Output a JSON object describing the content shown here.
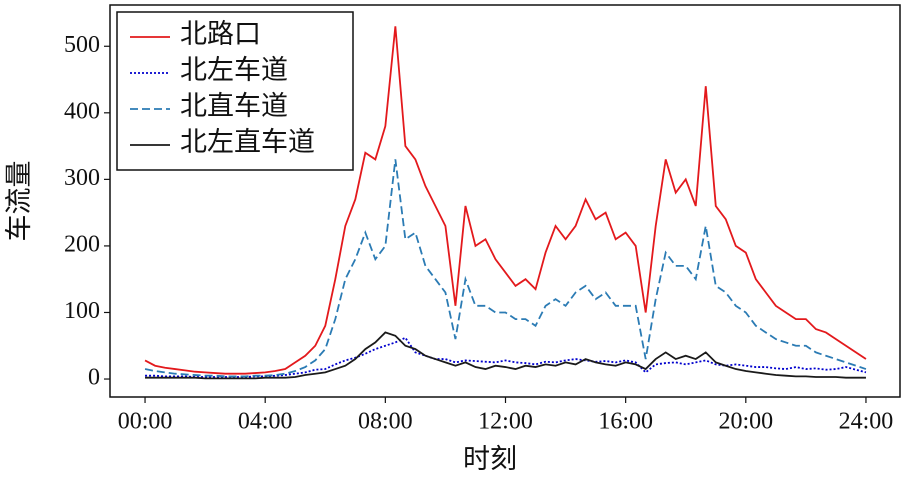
{
  "chart_data": {
    "type": "line",
    "xlabel": "时刻",
    "ylabel": "车流量",
    "x": [
      0,
      20,
      40,
      60,
      80,
      100,
      120,
      140,
      160,
      180,
      200,
      220,
      240,
      260,
      280,
      300,
      320,
      340,
      360,
      380,
      400,
      420,
      440,
      460,
      480,
      500,
      520,
      540,
      560,
      580,
      600,
      620,
      640,
      660,
      680,
      700,
      720,
      740,
      760,
      780,
      800,
      820,
      840,
      860,
      880,
      900,
      920,
      940,
      960,
      980,
      1000,
      1020,
      1040,
      1060,
      1080,
      1100,
      1120,
      1140,
      1160,
      1180,
      1200,
      1220,
      1240,
      1260,
      1280,
      1300,
      1320,
      1340,
      1360,
      1380,
      1400,
      1420,
      1440
    ],
    "xlim": [
      -70,
      1508
    ],
    "xticks": [
      {
        "value": 0,
        "label": "00:00"
      },
      {
        "value": 240,
        "label": "04:00"
      },
      {
        "value": 480,
        "label": "08:00"
      },
      {
        "value": 720,
        "label": "12:00"
      },
      {
        "value": 960,
        "label": "16:00"
      },
      {
        "value": 1200,
        "label": "20:00"
      },
      {
        "value": 1440,
        "label": "24:00"
      }
    ],
    "ylim": [
      -27,
      562
    ],
    "yticks": [
      0,
      100,
      200,
      300,
      400,
      500
    ],
    "legend": "upper left",
    "series": [
      {
        "name": "北路口",
        "color": "#e3191c",
        "linestyle": "solid",
        "values": [
          28,
          20,
          17,
          15,
          13,
          11,
          10,
          9,
          8,
          8,
          8,
          9,
          10,
          12,
          15,
          25,
          35,
          50,
          80,
          150,
          230,
          270,
          340,
          330,
          380,
          530,
          350,
          330,
          290,
          260,
          230,
          110,
          260,
          200,
          210,
          180,
          160,
          140,
          150,
          135,
          190,
          230,
          210,
          230,
          270,
          240,
          250,
          210,
          220,
          200,
          100,
          230,
          330,
          280,
          300,
          260,
          440,
          260,
          240,
          200,
          190,
          150,
          130,
          110,
          100,
          90,
          90,
          75,
          70,
          60,
          50,
          40,
          30
        ]
      },
      {
        "name": "北左车道",
        "color": "#0000cd",
        "linestyle": "dotted",
        "values": [
          5,
          5,
          4,
          4,
          4,
          3,
          3,
          3,
          3,
          3,
          3,
          4,
          4,
          5,
          6,
          8,
          10,
          14,
          15,
          22,
          28,
          32,
          38,
          45,
          50,
          55,
          62,
          40,
          35,
          30,
          30,
          25,
          28,
          27,
          26,
          25,
          28,
          25,
          24,
          22,
          26,
          25,
          28,
          30,
          28,
          26,
          27,
          25,
          28,
          25,
          10,
          22,
          24,
          25,
          22,
          25,
          28,
          22,
          20,
          22,
          20,
          18,
          18,
          16,
          15,
          18,
          15,
          16,
          14,
          15,
          18,
          14,
          10
        ]
      },
      {
        "name": "北直车道",
        "color": "#2b7bb4",
        "linestyle": "dashed",
        "values": [
          15,
          12,
          10,
          8,
          7,
          6,
          5,
          5,
          4,
          4,
          4,
          5,
          5,
          6,
          8,
          12,
          18,
          28,
          45,
          90,
          150,
          180,
          220,
          180,
          200,
          330,
          210,
          220,
          170,
          150,
          130,
          60,
          150,
          110,
          110,
          100,
          100,
          90,
          90,
          80,
          110,
          120,
          110,
          130,
          140,
          120,
          130,
          110,
          110,
          110,
          30,
          120,
          190,
          170,
          170,
          150,
          230,
          140,
          130,
          110,
          100,
          80,
          70,
          60,
          55,
          50,
          50,
          40,
          35,
          30,
          25,
          20,
          15
        ]
      },
      {
        "name": "北左直车道",
        "color": "#1a1a1a",
        "linestyle": "solid",
        "values": [
          2,
          2,
          2,
          2,
          2,
          2,
          1,
          1,
          1,
          1,
          1,
          1,
          2,
          2,
          2,
          3,
          6,
          8,
          10,
          15,
          20,
          30,
          45,
          55,
          70,
          65,
          50,
          45,
          35,
          30,
          25,
          20,
          25,
          18,
          15,
          20,
          18,
          15,
          20,
          18,
          22,
          20,
          25,
          22,
          30,
          25,
          22,
          20,
          25,
          22,
          15,
          30,
          40,
          30,
          35,
          30,
          40,
          25,
          20,
          15,
          12,
          10,
          8,
          6,
          5,
          4,
          4,
          3,
          3,
          3,
          2,
          2,
          2
        ]
      }
    ]
  }
}
